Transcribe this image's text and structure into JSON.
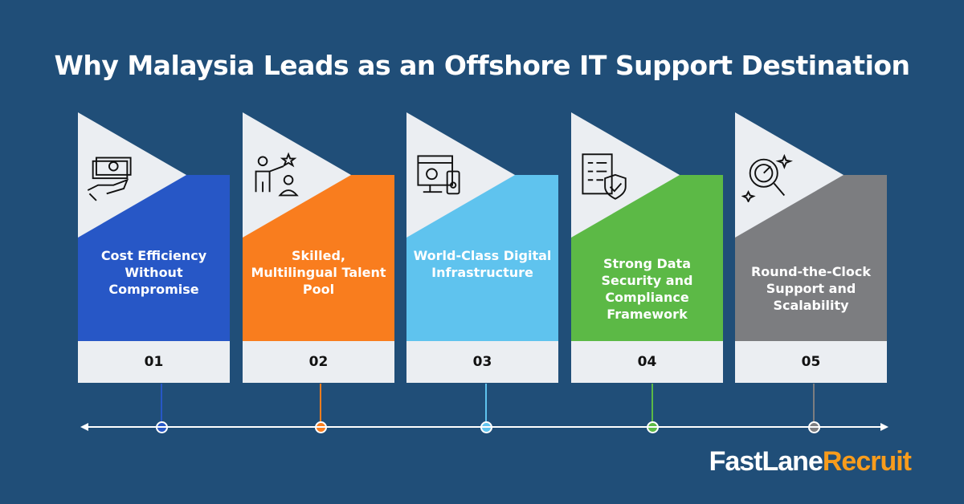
{
  "title": "Why Malaysia Leads as an Offshore IT Support Destination",
  "steps": [
    {
      "number": "01",
      "label": "Cost Efficiency Without Compromise",
      "color": "#2757c6",
      "icon": "money-hand-icon"
    },
    {
      "number": "02",
      "label": "Skilled, Multilingual Talent Pool",
      "color": "#f97d1e",
      "icon": "people-star-icon"
    },
    {
      "number": "03",
      "label": "World-Class Digital Infrastructure",
      "color": "#5fc3ee",
      "icon": "devices-gear-icon"
    },
    {
      "number": "04",
      "label": "Strong Data Security and Compliance Framework",
      "color": "#5cb946",
      "icon": "checklist-shield-icon"
    },
    {
      "number": "05",
      "label": "Round-the-Clock Support and Scalability",
      "color": "#7c7d80",
      "icon": "magnifier-chart-icon"
    }
  ],
  "logo": {
    "part1": "FastLane",
    "part2": "Recruit",
    "color1": "#ffffff",
    "color2": "#f89c1c"
  }
}
